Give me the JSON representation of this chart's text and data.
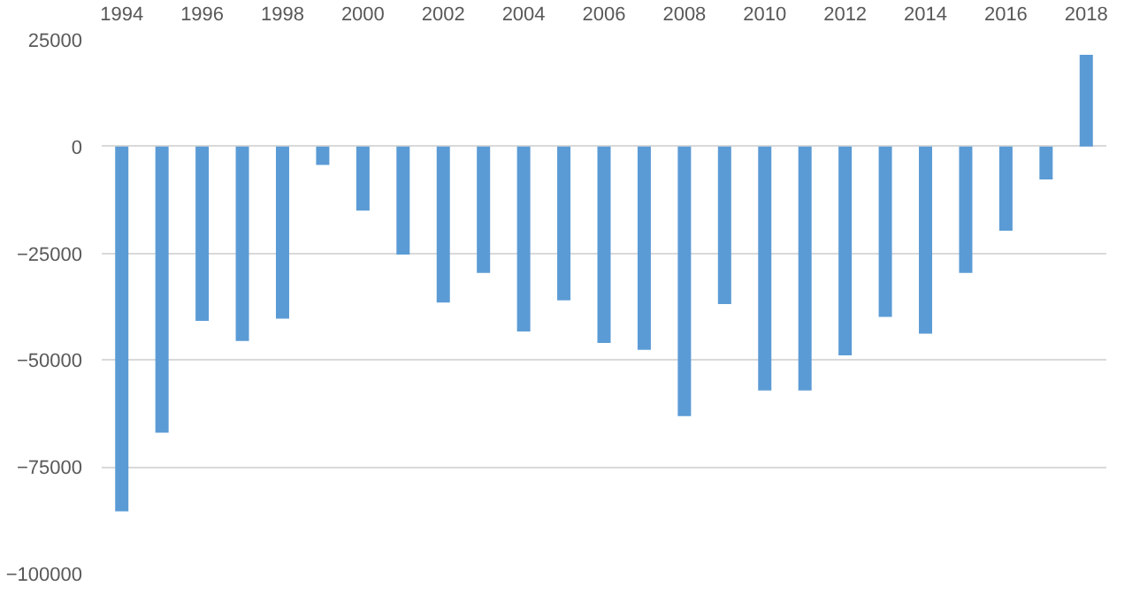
{
  "chart_data": {
    "type": "bar",
    "x": [
      1994,
      1995,
      1996,
      1997,
      1998,
      1999,
      2000,
      2001,
      2002,
      2003,
      2004,
      2005,
      2006,
      2007,
      2008,
      2009,
      2010,
      2011,
      2012,
      2013,
      2014,
      2015,
      2016,
      2017,
      2018
    ],
    "values": [
      -85400,
      -67000,
      -40800,
      -45500,
      -40300,
      -4300,
      -15000,
      -25300,
      -36500,
      -29600,
      -43300,
      -36000,
      -46000,
      -47600,
      -63100,
      -36900,
      -57100,
      -57100,
      -48900,
      -39900,
      -43800,
      -29600,
      -19700,
      -7700,
      21500
    ],
    "color": "#5b9bd5",
    "xlim": [
      1993.5,
      2018.5
    ],
    "xticks": [
      1994,
      1996,
      1998,
      2000,
      2002,
      2004,
      2006,
      2008,
      2010,
      2012,
      2014,
      2016,
      2018
    ],
    "ylim": [
      -100000,
      25000
    ],
    "yticks": [
      -100000,
      -75000,
      -50000,
      -25000,
      0,
      25000
    ],
    "grid": "y"
  }
}
